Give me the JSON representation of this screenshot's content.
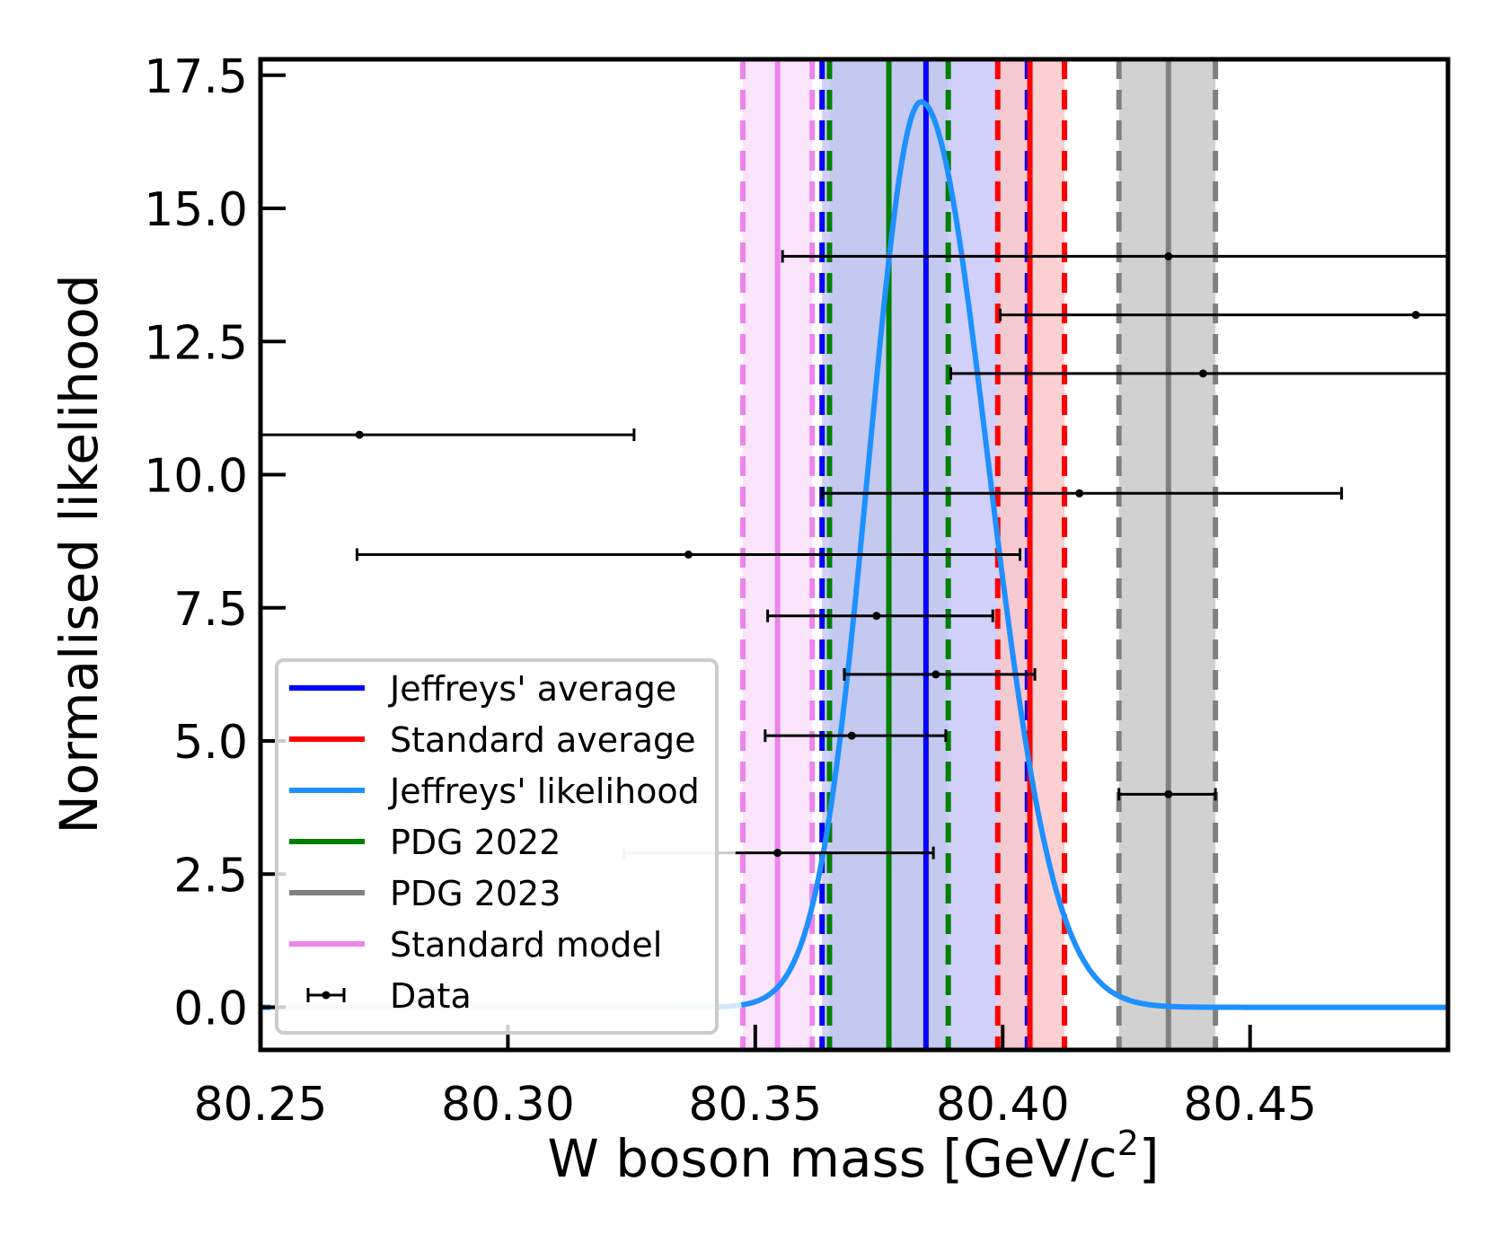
{
  "chart_data": {
    "type": "line",
    "title": "",
    "xlabel": "W boson mass [GeV/c",
    "xlabel_sup": "2",
    "xlabel_end": "]",
    "ylabel": "Normalised likelihood",
    "xlim": [
      80.25,
      80.49
    ],
    "ylim": [
      -0.8,
      17.8
    ],
    "x_ticks": [
      80.25,
      80.3,
      80.35,
      80.4,
      80.45
    ],
    "x_tick_labels": [
      "80.25",
      "80.30",
      "80.35",
      "80.40",
      "80.45"
    ],
    "y_ticks": [
      0.0,
      2.5,
      5.0,
      7.5,
      10.0,
      12.5,
      15.0,
      17.5
    ],
    "y_tick_labels": [
      "0.0",
      "2.5",
      "5.0",
      "7.5",
      "10.0",
      "12.5",
      "15.0",
      "17.5"
    ],
    "grid": false,
    "legend_position": "lower-left",
    "likelihood": {
      "name": "Jeffreys' likelihood",
      "color": "#1e90ff",
      "faded_color": "#d2e8fb",
      "peak_x": 80.3835,
      "peak_y": 17.0,
      "sigma_left": 0.0105,
      "sigma_right": 0.0135,
      "fade_below_x": 80.348
    },
    "bands": [
      {
        "name": "Standard model",
        "center": 80.3545,
        "low": 80.3475,
        "high": 80.3615,
        "color": "#ee82ee",
        "fill": "#fbe0fb"
      },
      {
        "name": "PDG 2022",
        "center": 80.377,
        "low": 80.365,
        "high": 80.389,
        "color": "#008000",
        "fill": "#9ec7a5"
      },
      {
        "name": "Jeffreys' average",
        "center": 80.3845,
        "low": 80.3635,
        "high": 80.405,
        "color": "#0000ff",
        "fill": "#c8c8fa"
      },
      {
        "name": "Standard average",
        "center": 80.4055,
        "low": 80.399,
        "high": 80.4125,
        "color": "#ff0000",
        "fill": "#fcc8c8"
      },
      {
        "name": "PDG 2023",
        "center": 80.4335,
        "low": 80.4235,
        "high": 80.443,
        "color": "#808080",
        "fill": "#c9c9c9"
      }
    ],
    "data_points": [
      {
        "y": 14.1,
        "x": 80.4335,
        "low": 80.3555,
        "high": 80.49
      },
      {
        "y": 13.0,
        "x": 80.4835,
        "low": 80.3995,
        "high": 80.49
      },
      {
        "y": 11.9,
        "x": 80.4405,
        "low": 80.3895,
        "high": 80.49
      },
      {
        "y": 10.75,
        "x": 80.27,
        "low": 80.25,
        "high": 80.3255
      },
      {
        "y": 9.65,
        "x": 80.4155,
        "low": 80.3635,
        "high": 80.4685
      },
      {
        "y": 8.5,
        "x": 80.3365,
        "low": 80.2695,
        "high": 80.4035
      },
      {
        "y": 7.35,
        "x": 80.3745,
        "low": 80.3525,
        "high": 80.398
      },
      {
        "y": 6.25,
        "x": 80.3865,
        "low": 80.368,
        "high": 80.4065
      },
      {
        "y": 5.1,
        "x": 80.3695,
        "low": 80.352,
        "high": 80.3885
      },
      {
        "y": 4.0,
        "x": 80.4335,
        "low": 80.4235,
        "high": 80.443
      },
      {
        "y": 2.9,
        "x": 80.3545,
        "low": 80.3235,
        "high": 80.386,
        "faded_low_until": 80.346
      }
    ],
    "legend": [
      {
        "label": "Jeffreys' average",
        "color": "#0000ff",
        "kind": "line"
      },
      {
        "label": "Standard average",
        "color": "#ff0000",
        "kind": "line"
      },
      {
        "label": "Jeffreys' likelihood",
        "color": "#1e90ff",
        "kind": "line"
      },
      {
        "label": "PDG 2022",
        "color": "#008000",
        "kind": "line"
      },
      {
        "label": "PDG 2023",
        "color": "#808080",
        "kind": "line"
      },
      {
        "label": "Standard model",
        "color": "#ee82ee",
        "kind": "line"
      },
      {
        "label": "Data",
        "color": "#000000",
        "kind": "errorbar"
      }
    ]
  }
}
